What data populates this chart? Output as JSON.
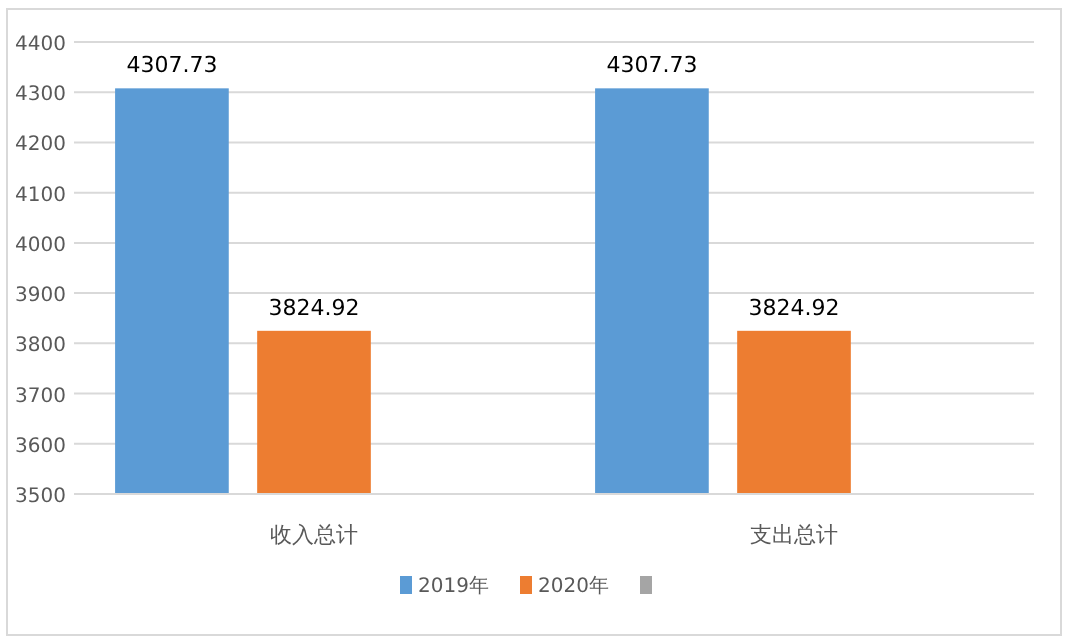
{
  "chart_data": {
    "type": "bar",
    "categories": [
      "收入总计",
      "支出总计"
    ],
    "series": [
      {
        "name": "2019年",
        "color": "#5b9bd5",
        "values": [
          4307.73,
          4307.73
        ]
      },
      {
        "name": "2020年",
        "color": "#ed7d31",
        "values": [
          3824.92,
          3824.92
        ]
      },
      {
        "color": "#a5a5a5",
        "values": [
          null,
          null
        ]
      }
    ],
    "ylim": [
      3500,
      4400
    ],
    "yticks": [
      3500,
      3600,
      3700,
      3800,
      3900,
      4000,
      4100,
      4200,
      4300,
      4400
    ],
    "grid": "y",
    "data_labels": true,
    "legend": "bottom"
  }
}
